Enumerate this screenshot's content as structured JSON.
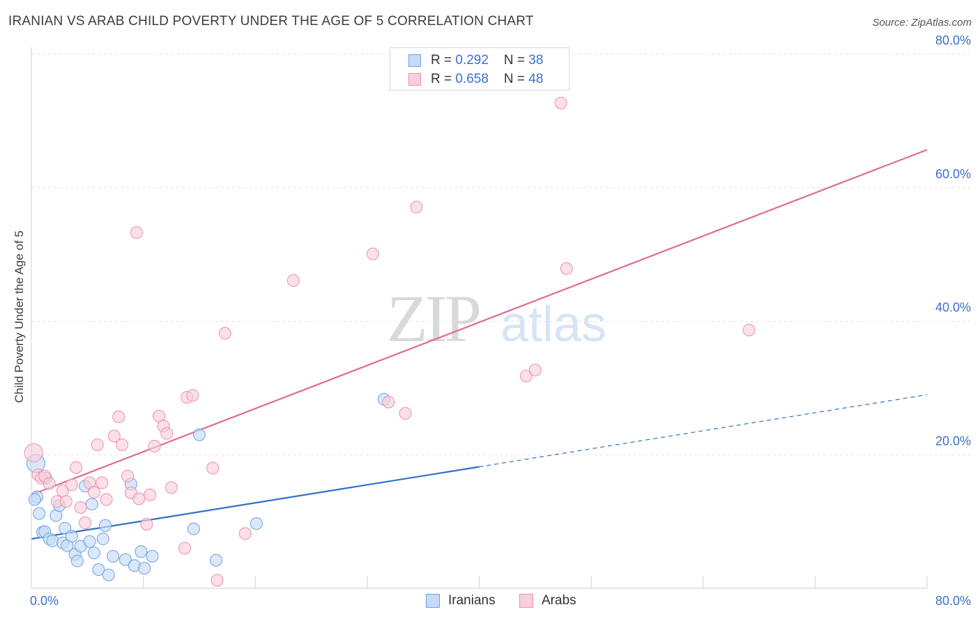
{
  "title": "IRANIAN VS ARAB CHILD POVERTY UNDER THE AGE OF 5 CORRELATION CHART",
  "source": "Source: ZipAtlas.com",
  "watermark": {
    "zip": "ZIP",
    "atlas": "atlas"
  },
  "legend": {
    "rows": [
      {
        "r_label": "R = ",
        "r_value": "0.292",
        "n_label": "N = ",
        "n_value": "38"
      },
      {
        "r_label": "R = ",
        "r_value": "0.658",
        "n_label": "N = ",
        "n_value": "48"
      }
    ]
  },
  "colors": {
    "iranians_fill": "#c6dbf7",
    "iranians_stroke": "#6f9fe0",
    "iranians_line": "#2f6fcc",
    "arabs_fill": "#f9cfdb",
    "arabs_stroke": "#ec8eab",
    "arabs_line": "#e06a93",
    "tick_label": "#3a6fd0",
    "grid": "#e3e3e3"
  },
  "chart_data": {
    "type": "scatter",
    "title": "IRANIAN VS ARAB CHILD POVERTY UNDER THE AGE OF 5 CORRELATION CHART",
    "xlabel": "",
    "ylabel": "Child Poverty Under the Age of 5",
    "xlim": [
      0,
      80
    ],
    "ylim": [
      0,
      80
    ],
    "x_tick_labels": [
      "0.0%",
      "80.0%"
    ],
    "y_ticks": [
      {
        "value": 20,
        "label": "20.0%"
      },
      {
        "value": 40,
        "label": "40.0%"
      },
      {
        "value": 60,
        "label": "60.0%"
      },
      {
        "value": 80,
        "label": "80.0%"
      }
    ],
    "series": [
      {
        "name": "Iranians",
        "R": 0.292,
        "N": 38,
        "points": [
          [
            0.4,
            18.7
          ],
          [
            0.5,
            13.7
          ],
          [
            0.7,
            11.2
          ],
          [
            1.0,
            8.4
          ],
          [
            1.2,
            8.5
          ],
          [
            1.3,
            16.5
          ],
          [
            1.6,
            7.4
          ],
          [
            1.9,
            7.1
          ],
          [
            2.2,
            10.9
          ],
          [
            2.5,
            12.4
          ],
          [
            2.8,
            6.8
          ],
          [
            3.0,
            9.0
          ],
          [
            3.2,
            6.4
          ],
          [
            3.6,
            7.8
          ],
          [
            3.9,
            5.1
          ],
          [
            4.1,
            4.1
          ],
          [
            4.4,
            6.3
          ],
          [
            4.8,
            15.3
          ],
          [
            5.2,
            7.0
          ],
          [
            5.4,
            12.6
          ],
          [
            5.6,
            5.3
          ],
          [
            6.0,
            2.8
          ],
          [
            6.4,
            7.4
          ],
          [
            6.6,
            9.4
          ],
          [
            6.9,
            2.0
          ],
          [
            7.3,
            4.8
          ],
          [
            8.4,
            4.3
          ],
          [
            8.9,
            15.6
          ],
          [
            9.2,
            3.4
          ],
          [
            9.8,
            5.5
          ],
          [
            10.1,
            3.0
          ],
          [
            10.8,
            4.8
          ],
          [
            14.5,
            8.9
          ],
          [
            15.0,
            23.0
          ],
          [
            16.5,
            4.2
          ],
          [
            20.1,
            9.7
          ],
          [
            0.3,
            13.3
          ],
          [
            31.5,
            28.3
          ]
        ],
        "trend": {
          "x": [
            0,
            40
          ],
          "y": [
            7.4,
            18.2
          ],
          "dashed_extension": {
            "x": [
              40,
              80
            ],
            "y": [
              18.2,
              29.0
            ]
          }
        }
      },
      {
        "name": "Arabs",
        "R": 0.658,
        "N": 48,
        "points": [
          [
            0.2,
            20.3
          ],
          [
            0.6,
            17.0
          ],
          [
            0.9,
            16.5
          ],
          [
            1.2,
            16.8
          ],
          [
            1.6,
            15.7
          ],
          [
            2.3,
            13.0
          ],
          [
            2.8,
            14.6
          ],
          [
            3.1,
            13.0
          ],
          [
            3.6,
            15.5
          ],
          [
            4.0,
            18.1
          ],
          [
            4.4,
            12.1
          ],
          [
            4.8,
            9.8
          ],
          [
            5.2,
            15.8
          ],
          [
            5.6,
            14.4
          ],
          [
            5.9,
            21.5
          ],
          [
            6.3,
            15.8
          ],
          [
            6.7,
            13.3
          ],
          [
            7.4,
            22.8
          ],
          [
            7.8,
            25.7
          ],
          [
            8.1,
            21.5
          ],
          [
            8.6,
            16.8
          ],
          [
            8.9,
            14.3
          ],
          [
            9.4,
            53.3
          ],
          [
            9.6,
            13.4
          ],
          [
            10.3,
            9.6
          ],
          [
            10.6,
            14.0
          ],
          [
            11.0,
            21.3
          ],
          [
            11.4,
            25.8
          ],
          [
            11.8,
            24.3
          ],
          [
            12.1,
            23.2
          ],
          [
            12.5,
            15.1
          ],
          [
            13.7,
            6.0
          ],
          [
            13.9,
            28.6
          ],
          [
            14.4,
            28.9
          ],
          [
            16.2,
            18.0
          ],
          [
            16.6,
            1.2
          ],
          [
            17.3,
            38.2
          ],
          [
            19.1,
            8.2
          ],
          [
            23.4,
            46.1
          ],
          [
            30.5,
            50.1
          ],
          [
            31.9,
            27.9
          ],
          [
            33.4,
            26.2
          ],
          [
            34.4,
            57.1
          ],
          [
            44.2,
            31.8
          ],
          [
            45.0,
            32.7
          ],
          [
            47.3,
            72.7
          ],
          [
            47.8,
            47.9
          ],
          [
            64.1,
            38.7
          ]
        ],
        "trend": {
          "x": [
            0,
            80
          ],
          "y": [
            14.0,
            65.7
          ]
        }
      }
    ]
  },
  "bottom_legend": [
    {
      "label": "Iranians"
    },
    {
      "label": "Arabs"
    }
  ]
}
